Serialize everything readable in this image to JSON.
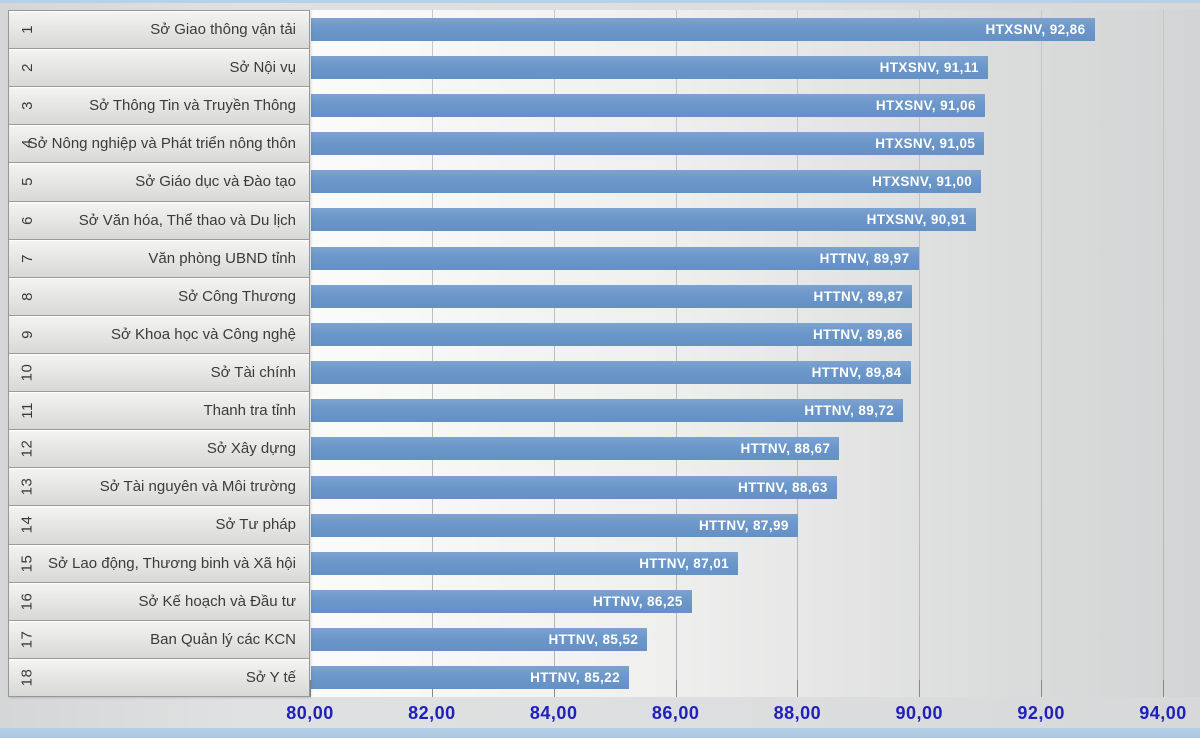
{
  "colors": {
    "bar_fill": "#6b97ca",
    "bar_label_text": "#ffffff",
    "axis_label_text": "#1f1fba",
    "table_text": "#3b3b3b",
    "top_strip": "#b9d1e6",
    "bottom_strip": "#aecbe3",
    "gridline": "#b8b9bb"
  },
  "chart_data": {
    "type": "bar",
    "orientation": "horizontal",
    "title": "",
    "xlabel": "",
    "ylabel": "",
    "xlim": [
      80,
      94
    ],
    "grid": true,
    "legend": "none",
    "value_label_position": "inside-end",
    "x_axis": {
      "tick_values": [
        80,
        82,
        84,
        86,
        88,
        90,
        92,
        94
      ],
      "tick_labels": [
        "80,00",
        "82,00",
        "84,00",
        "86,00",
        "88,00",
        "90,00",
        "92,00",
        "94,00"
      ]
    },
    "rows": [
      {
        "rank": "1",
        "name": "Sở Giao thông vận tải",
        "series": "HTXSNV",
        "value": 92.86,
        "value_label": "HTXSNV, 92,86"
      },
      {
        "rank": "2",
        "name": "Sở Nội vụ",
        "series": "HTXSNV",
        "value": 91.11,
        "value_label": "HTXSNV, 91,11"
      },
      {
        "rank": "3",
        "name": "Sở Thông Tin và Truyền Thông",
        "series": "HTXSNV",
        "value": 91.06,
        "value_label": "HTXSNV, 91,06"
      },
      {
        "rank": "4",
        "name": "Sở Nông nghiệp và Phát triển nông thôn",
        "series": "HTXSNV",
        "value": 91.05,
        "value_label": "HTXSNV, 91,05"
      },
      {
        "rank": "5",
        "name": "Sở Giáo dục và Đào tạo",
        "series": "HTXSNV",
        "value": 91.0,
        "value_label": "HTXSNV, 91,00"
      },
      {
        "rank": "6",
        "name": "Sở Văn hóa, Thể thao và Du lịch",
        "series": "HTXSNV",
        "value": 90.91,
        "value_label": "HTXSNV, 90,91"
      },
      {
        "rank": "7",
        "name": "Văn phòng UBND tỉnh",
        "series": "HTTNV",
        "value": 89.97,
        "value_label": "HTTNV, 89,97"
      },
      {
        "rank": "8",
        "name": "Sở Công Thương",
        "series": "HTTNV",
        "value": 89.87,
        "value_label": "HTTNV, 89,87"
      },
      {
        "rank": "9",
        "name": "Sở Khoa học và Công nghệ",
        "series": "HTTNV",
        "value": 89.86,
        "value_label": "HTTNV, 89,86"
      },
      {
        "rank": "10",
        "name": "Sở Tài chính",
        "series": "HTTNV",
        "value": 89.84,
        "value_label": "HTTNV, 89,84"
      },
      {
        "rank": "11",
        "name": "Thanh tra tỉnh",
        "series": "HTTNV",
        "value": 89.72,
        "value_label": "HTTNV, 89,72"
      },
      {
        "rank": "12",
        "name": "Sở Xây dựng",
        "series": "HTTNV",
        "value": 88.67,
        "value_label": "HTTNV, 88,67"
      },
      {
        "rank": "13",
        "name": "Sở Tài nguyên và Môi trường",
        "series": "HTTNV",
        "value": 88.63,
        "value_label": "HTTNV, 88,63"
      },
      {
        "rank": "14",
        "name": "Sở Tư pháp",
        "series": "HTTNV",
        "value": 87.99,
        "value_label": "HTTNV, 87,99"
      },
      {
        "rank": "15",
        "name": "Sở Lao động, Thương binh và Xã hội",
        "series": "HTTNV",
        "value": 87.01,
        "value_label": "HTTNV, 87,01"
      },
      {
        "rank": "16",
        "name": "Sở Kế hoạch và Đầu tư",
        "series": "HTTNV",
        "value": 86.25,
        "value_label": "HTTNV, 86,25"
      },
      {
        "rank": "17",
        "name": "Ban Quản lý các KCN",
        "series": "HTTNV",
        "value": 85.52,
        "value_label": "HTTNV, 85,52"
      },
      {
        "rank": "18",
        "name": "Sở Y tế",
        "series": "HTTNV",
        "value": 85.22,
        "value_label": "HTTNV, 85,22"
      }
    ]
  }
}
